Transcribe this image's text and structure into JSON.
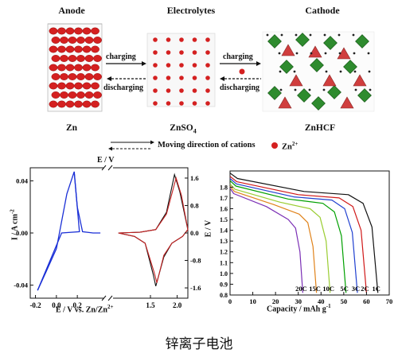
{
  "schematic": {
    "headers": {
      "anode": "Anode",
      "electrolytes": "Electrolytes",
      "cathode": "Cathode"
    },
    "captions": {
      "anode": "Zn",
      "electrolyte": "ZnSO",
      "electrolyte_sub": "4",
      "cathode": "ZnHCF"
    },
    "arrows": {
      "charging": "charging",
      "discharging": "discharging"
    },
    "legend": {
      "moving_direction": "Moving direction of cations",
      "ion": "Zn",
      "ion_sup": "2+"
    },
    "colors": {
      "zn_atom": "#d42020",
      "octahedron": "#2e8b2e",
      "framework_red": "#cc2a2a"
    }
  },
  "cv_plot": {
    "top_axis_label": "E  /  V",
    "ylabel": "I  /  A cm",
    "ylabel_sup": "-2",
    "xlabel": "E  /  V vs. Zn/Zn",
    "xlabel_sup": "2+",
    "x_ticks_left": [
      "-0.2",
      "0.0",
      "0.2"
    ],
    "x_ticks_right": [
      "1.5",
      "2.0"
    ],
    "y_ticks_left": [
      "0.04",
      "0.00",
      "-0.04"
    ],
    "y_ticks_right": [
      "1.6",
      "0.8",
      "0.0",
      "-0.8",
      "-1.6"
    ]
  },
  "chart_data": [
    {
      "type": "line",
      "title": "",
      "xlabel": "E / V vs. Zn/Zn2+",
      "ylabel": "I / A cm-2",
      "xlim": [
        -0.25,
        0.45
      ],
      "ylim": [
        -0.05,
        0.05
      ],
      "series": [
        {
          "x": [
            -0.18,
            -0.1,
            0.0,
            0.1,
            0.17,
            0.2,
            0.25,
            0.35,
            0.42
          ],
          "y": [
            -0.044,
            -0.03,
            -0.012,
            0.03,
            0.047,
            0.02,
            0.001,
            0.0,
            0.0
          ]
        }
      ],
      "color": "#1a2fd6",
      "grid": false
    },
    {
      "type": "line",
      "title": "",
      "xlabel": "E / V",
      "ylabel": "",
      "xlim": [
        0.8,
        2.2
      ],
      "ylim": [
        -1.9,
        1.9
      ],
      "series": [
        {
          "x": [
            0.9,
            1.3,
            1.6,
            1.8,
            1.95,
            2.05,
            2.2,
            2.1,
            1.9,
            1.75,
            1.6,
            1.55,
            1.4,
            1.2,
            0.9
          ],
          "y": [
            0.0,
            0.02,
            0.1,
            0.6,
            1.7,
            1.2,
            0.1,
            -0.1,
            -0.3,
            -0.7,
            -1.55,
            -1.2,
            -0.3,
            -0.1,
            0.0
          ]
        },
        {
          "x": [
            0.9,
            1.3,
            1.6,
            1.8,
            1.98,
            2.08,
            2.2,
            2.1,
            1.9,
            1.75,
            1.62,
            1.57,
            1.4,
            1.2,
            0.9
          ],
          "y": [
            0.0,
            0.02,
            0.1,
            0.55,
            1.6,
            1.1,
            0.1,
            -0.1,
            -0.3,
            -0.65,
            -1.45,
            -1.15,
            -0.3,
            -0.1,
            0.0
          ]
        }
      ],
      "colors": [
        "#111111",
        "#c42020"
      ],
      "grid": false
    },
    {
      "type": "line",
      "title": "",
      "xlabel": "Capacity  /  mAh g",
      "xlabel_sup": "-1",
      "ylabel": "E  /  V",
      "xlim": [
        0,
        70
      ],
      "ylim": [
        0.8,
        1.95
      ],
      "x_ticks": [
        "0",
        "10",
        "20",
        "30",
        "40",
        "50",
        "60",
        "70"
      ],
      "y_ticks": [
        "0.8",
        "0.9",
        "1.0",
        "1.1",
        "1.2",
        "1.3",
        "1.4",
        "1.5",
        "1.6",
        "1.7",
        "1.8"
      ],
      "series": [
        {
          "name": "20C",
          "color": "#7b2fb5",
          "end": 32,
          "start_v": 1.74,
          "drop_v": 1.45
        },
        {
          "name": "15C",
          "color": "#e0821a",
          "end": 38,
          "start_v": 1.76,
          "drop_v": 1.5
        },
        {
          "name": "10C",
          "color": "#9acd32",
          "end": 44,
          "start_v": 1.78,
          "drop_v": 1.55
        },
        {
          "name": "5C",
          "color": "#00a000",
          "end": 51,
          "start_v": 1.81,
          "drop_v": 1.6
        },
        {
          "name": "3C",
          "color": "#2040d0",
          "end": 56,
          "start_v": 1.83,
          "drop_v": 1.63
        },
        {
          "name": "2C",
          "color": "#d01818",
          "end": 60,
          "start_v": 1.85,
          "drop_v": 1.65
        },
        {
          "name": "1C",
          "color": "#111111",
          "end": 65,
          "start_v": 1.88,
          "drop_v": 1.68
        }
      ],
      "grid": false
    }
  ],
  "caption": "锌离子电池"
}
